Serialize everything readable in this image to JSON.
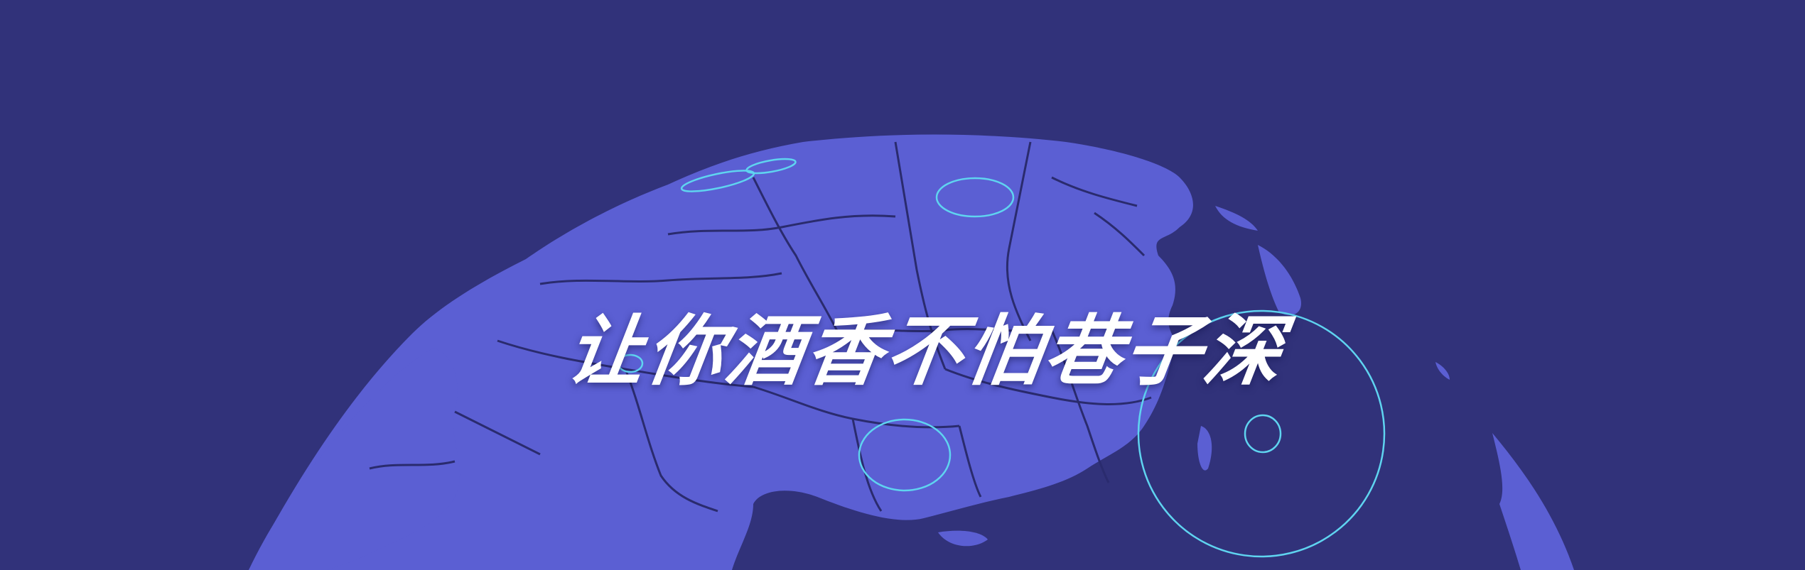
{
  "banner": {
    "headline": "让你酒香不怕巷子深"
  },
  "colors": {
    "background": "#31327a",
    "land": "#5b5fd3",
    "borders": "#2a2b6e",
    "ring_accent": "#5fd4f0",
    "headline": "#ffffff"
  }
}
